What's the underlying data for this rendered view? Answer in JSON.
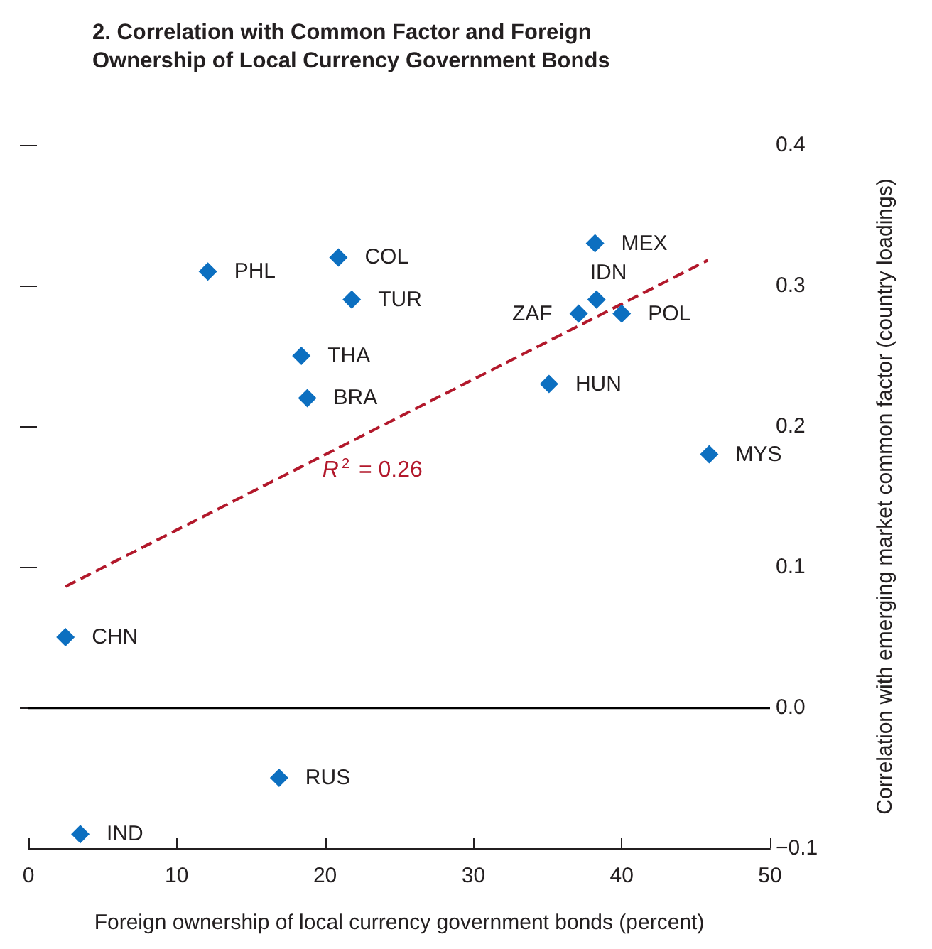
{
  "chart_data": {
    "type": "scatter",
    "title": "2. Correlation with Common Factor and Foreign Ownership of Local Currency Government Bonds",
    "xlabel": "Foreign ownership of local currency government bonds (percent)",
    "ylabel": "Correlation with emerging market common factor (country loadings)",
    "xlim": [
      0,
      50
    ],
    "xticks": [
      0,
      10,
      20,
      30,
      40,
      50
    ],
    "ylim": [
      -0.1,
      0.4
    ],
    "yticks": [
      {
        "value": -0.1,
        "label": "−0.1"
      },
      {
        "value": 0,
        "label": "0.0"
      },
      {
        "value": 0.1,
        "label": "0.1"
      },
      {
        "value": 0.2,
        "label": "0.2"
      },
      {
        "value": 0.3,
        "label": "0.3"
      },
      {
        "value": 0.4,
        "label": "0.4"
      }
    ],
    "grid": false,
    "legend": false,
    "marker": "diamond",
    "ref_lines": [
      {
        "axis": "y",
        "value": 0,
        "color": "#000000"
      }
    ],
    "annotations": [
      "R$^{2}$ = 0.26"
    ],
    "series": [
      {
        "name": "PHL",
        "color": "#0c6fc0",
        "x": [
          12.1
        ],
        "values": [
          0.31
        ]
      },
      {
        "name": "COL",
        "color": "#0c6fc0",
        "x": [
          20.9
        ],
        "values": [
          0.32
        ]
      },
      {
        "name": "TUR",
        "color": "#0c6fc0",
        "x": [
          21.8
        ],
        "values": [
          0.29
        ]
      },
      {
        "name": "THA",
        "color": "#0c6fc0",
        "x": [
          18.4
        ],
        "values": [
          0.25
        ]
      },
      {
        "name": "BRA",
        "color": "#0c6fc0",
        "x": [
          18.8
        ],
        "values": [
          0.22
        ]
      },
      {
        "name": "MEX",
        "color": "#0c6fc0",
        "x": [
          38.2
        ],
        "values": [
          0.33
        ]
      },
      {
        "name": "IDN",
        "color": "#0c6fc0",
        "x": [
          38.3
        ],
        "values": [
          0.29
        ]
      },
      {
        "name": "ZAF",
        "color": "#0c6fc0",
        "x": [
          37.1
        ],
        "values": [
          0.28
        ]
      },
      {
        "name": "POL",
        "color": "#0c6fc0",
        "x": [
          40.0
        ],
        "values": [
          0.28
        ]
      },
      {
        "name": "HUN",
        "color": "#0c6fc0",
        "x": [
          35.1
        ],
        "values": [
          0.23
        ]
      },
      {
        "name": "MYS",
        "color": "#0c6fc0",
        "x": [
          45.9
        ],
        "values": [
          0.18
        ]
      },
      {
        "name": "CHN",
        "color": "#0c6fc0",
        "x": [
          2.5
        ],
        "values": [
          0.05
        ]
      },
      {
        "name": "RUS",
        "color": "#0c6fc0",
        "x": [
          16.9
        ],
        "values": [
          -0.05
        ]
      },
      {
        "name": "IND",
        "color": "#0c6fc0",
        "x": [
          3.5
        ],
        "values": [
          -0.09
        ]
      },
      {
        "type": "line",
        "color": "#b2182b",
        "line_style": "dashed",
        "marker": "none",
        "x": [
          2.5,
          45.8
        ],
        "values": [
          0.086,
          0.318
        ]
      }
    ]
  }
}
